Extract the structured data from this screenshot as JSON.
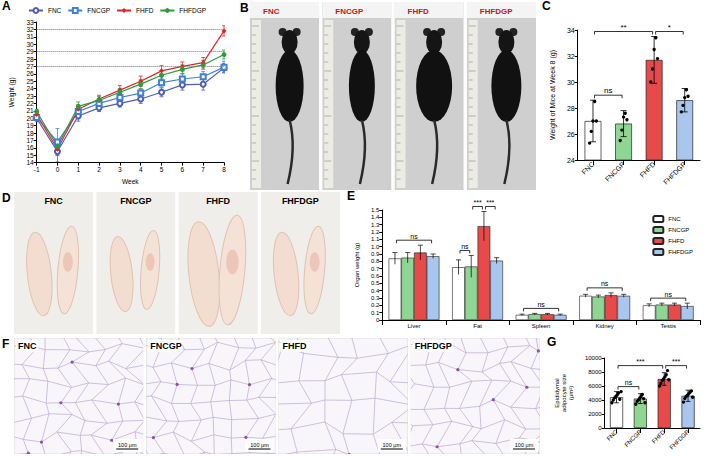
{
  "chart_data": [
    {
      "panel": "A",
      "type": "line",
      "x": [
        -1,
        0,
        1,
        2,
        3,
        4,
        5,
        6,
        7,
        8
      ],
      "x_label": "Week",
      "y_label": "Weight (g)",
      "xlim": [
        -1,
        8
      ],
      "xticks": [
        -1,
        0,
        1,
        2,
        3,
        4,
        5,
        6,
        7,
        8
      ],
      "ylim": [
        14,
        33
      ],
      "yticks": [
        14,
        15,
        16,
        17,
        18,
        19,
        20,
        21,
        22,
        23,
        24,
        25,
        26,
        27,
        28,
        29,
        30,
        31,
        32,
        33
      ],
      "grid": false,
      "legend": "top",
      "hlines": [
        32,
        29,
        27
      ],
      "series": [
        {
          "name": "FNC",
          "color": "#4f5bb5",
          "marker": "open_circle",
          "values": [
            20.0,
            15.5,
            20.3,
            21.4,
            22.0,
            22.6,
            23.5,
            24.5,
            24.6,
            26.8
          ],
          "errors": [
            0.5,
            1.4,
            0.7,
            0.5,
            0.5,
            0.6,
            0.6,
            0.7,
            0.8,
            0.6
          ]
        },
        {
          "name": "FNCGP",
          "color": "#3d7fd9",
          "marker": "open_square",
          "values": [
            20.1,
            16.8,
            20.9,
            22.0,
            22.8,
            23.4,
            24.8,
            25.3,
            25.6,
            26.9
          ],
          "errors": [
            0.4,
            1.8,
            0.6,
            0.5,
            0.5,
            0.5,
            0.6,
            0.7,
            0.7,
            0.8
          ]
        },
        {
          "name": "FHFD",
          "color": "#e02424",
          "marker": "diamond",
          "values": [
            20.5,
            15.8,
            21.2,
            22.6,
            23.8,
            25.0,
            26.4,
            27.0,
            27.5,
            31.8
          ],
          "errors": [
            0.4,
            0.8,
            0.6,
            0.5,
            0.6,
            0.7,
            0.7,
            0.6,
            0.7,
            0.7
          ]
        },
        {
          "name": "FHFDGP",
          "color": "#2f9a3c",
          "marker": "circle",
          "values": [
            20.9,
            16.2,
            21.6,
            22.4,
            23.5,
            24.6,
            25.8,
            26.6,
            27.2,
            28.6
          ],
          "errors": [
            0.3,
            0.9,
            0.6,
            0.5,
            0.5,
            0.6,
            0.6,
            0.6,
            0.6,
            0.6
          ]
        }
      ]
    },
    {
      "panel": "C",
      "type": "bar",
      "categories": [
        "FNC",
        "FNCGP",
        "FHFD",
        "FHFDGP"
      ],
      "values": [
        27.0,
        26.8,
        31.7,
        28.6
      ],
      "errors": [
        1.6,
        1.0,
        1.8,
        0.9
      ],
      "points": [
        [
          25.3,
          26.2,
          27.0,
          28.5,
          27.0
        ],
        [
          25.5,
          26.3,
          27.3,
          27.6,
          27.1
        ],
        [
          30.0,
          31.0,
          32.5,
          33.4,
          31.8
        ],
        [
          27.7,
          28.2,
          28.8,
          29.4,
          28.9
        ]
      ],
      "colors": [
        "#ffffff",
        "#8fd694",
        "#e84a4a",
        "#a9c6ef"
      ],
      "y_label": "Weight of Mice at Week 8 (g)",
      "ylim": [
        24,
        34
      ],
      "yticks": [
        24,
        26,
        28,
        30,
        32,
        34
      ],
      "grid": false,
      "annotations": [
        {
          "from": "FNC",
          "to": "FNCGP",
          "label": "ns"
        },
        {
          "from": "FHFD",
          "to": "FHFDGP",
          "label": "*"
        },
        {
          "from": "FNC",
          "to": "FHFD",
          "label": "**"
        }
      ]
    },
    {
      "panel": "E",
      "type": "bar",
      "categories": [
        "Liver",
        "Fat",
        "Spleen",
        "Kidney",
        "Testis"
      ],
      "y_label": "Organ weight (g)",
      "ylim": [
        0,
        1.5
      ],
      "yticks": [
        0,
        0.1,
        0.2,
        0.3,
        0.4,
        0.5,
        0.6,
        0.7,
        0.8,
        0.9,
        {
          "value": 1,
          "label": "1.0"
        },
        1.1,
        1.2,
        1.3,
        1.4,
        1.5
      ],
      "grid": false,
      "legend": "upper right",
      "series": [
        {
          "name": "FNC",
          "color": "#ffffff",
          "values": [
            0.84,
            0.72,
            0.07,
            0.33,
            0.2
          ],
          "errors": [
            0.08,
            0.1,
            0.01,
            0.02,
            0.02
          ]
        },
        {
          "name": "FNCGP",
          "color": "#8fd694",
          "values": [
            0.85,
            0.73,
            0.08,
            0.32,
            0.21
          ],
          "errors": [
            0.07,
            0.15,
            0.01,
            0.02,
            0.02
          ]
        },
        {
          "name": "FHFD",
          "color": "#e84a4a",
          "values": [
            0.92,
            1.28,
            0.08,
            0.34,
            0.21
          ],
          "errors": [
            0.1,
            0.2,
            0.01,
            0.03,
            0.02
          ]
        },
        {
          "name": "FHFDGP",
          "color": "#a9c6ef",
          "values": [
            0.87,
            0.81,
            0.07,
            0.33,
            0.19
          ],
          "errors": [
            0.03,
            0.04,
            0.01,
            0.02,
            0.04
          ]
        }
      ],
      "annotations": [
        {
          "category": "Liver",
          "from": "FNC",
          "to": "FHFDGP",
          "label": "ns"
        },
        {
          "category": "Fat",
          "from": "FNC",
          "to": "FNCGP",
          "label": "ns"
        },
        {
          "category": "Fat",
          "from": "FNCGP",
          "to": "FHFD",
          "label": "***"
        },
        {
          "category": "Fat",
          "from": "FHFD",
          "to": "FHFDGP",
          "label": "***"
        },
        {
          "category": "Spleen",
          "from": "FNC",
          "to": "FHFDGP",
          "label": "ns"
        },
        {
          "category": "Kidney",
          "from": "FNC",
          "to": "FHFDGP",
          "label": "ns"
        },
        {
          "category": "Testis",
          "from": "FNC",
          "to": "FHFDGP",
          "label": "ns"
        }
      ]
    },
    {
      "panel": "G",
      "type": "bar",
      "categories": [
        "FNC",
        "FNCGP",
        "FHFD",
        "FHFDGP"
      ],
      "values": [
        4400,
        4200,
        7000,
        4600
      ],
      "errors": [
        800,
        700,
        900,
        800
      ],
      "points": [
        [
          3600,
          4000,
          4300,
          4500,
          4700,
          5000,
          4100,
          5200
        ],
        [
          3400,
          3800,
          4000,
          4300,
          4500,
          4800,
          4200,
          3600
        ],
        [
          6000,
          6400,
          6800,
          7000,
          7300,
          7600,
          8200,
          6900
        ],
        [
          3700,
          4200,
          4500,
          4700,
          4900,
          5100,
          5300,
          4400
        ]
      ],
      "colors": [
        "#ffffff",
        "#8fd694",
        "#e84a4a",
        "#a9c6ef"
      ],
      "y_label": "Epididymal adipocyte size (μm²)",
      "ylim": [
        0,
        10000
      ],
      "yticks": [
        0,
        2000,
        4000,
        6000,
        8000,
        10000
      ],
      "grid": false,
      "annotations": [
        {
          "from": "FNC",
          "to": "FNCGP",
          "label": "ns"
        },
        {
          "from": "FHFD",
          "to": "FHFDGP",
          "label": "***"
        },
        {
          "from": "FNC",
          "to": "FHFD",
          "label": "***"
        }
      ]
    }
  ],
  "images": [
    {
      "panel": "B",
      "kind": "mice",
      "labels": [
        "FNC",
        "FNCGP",
        "FHFD",
        "FHFDGP"
      ]
    },
    {
      "panel": "D",
      "kind": "fat",
      "labels": [
        "FNC",
        "FNCGP",
        "FHFD",
        "FHFDGP"
      ]
    },
    {
      "panel": "F",
      "kind": "histology",
      "labels": [
        "FNC",
        "FNCGP",
        "FHFD",
        "FHFDGP"
      ],
      "scale_label": "100 μm"
    }
  ]
}
